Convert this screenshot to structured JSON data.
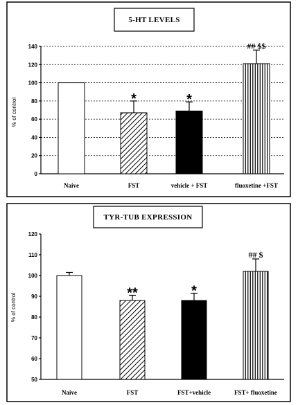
{
  "chart_data": [
    {
      "type": "bar",
      "title": "5-HT LEVELS",
      "ylabel": "% of control",
      "xlabel": "",
      "categories": [
        "Naive",
        "FST",
        "vehicle + FST",
        "fluoxetine +FST"
      ],
      "values": [
        100,
        67,
        69,
        121
      ],
      "errors": [
        0,
        13,
        10,
        15
      ],
      "fills": [
        "white",
        "diagonal-hatch",
        "black",
        "vertical-hatch"
      ],
      "annotations": [
        "",
        "*",
        "*",
        "## $$"
      ],
      "ylim": [
        0,
        140
      ],
      "yticks": [
        "0",
        "20",
        "40",
        "60",
        "80",
        "100",
        "120",
        "140"
      ],
      "grid": true
    },
    {
      "type": "bar",
      "title": "TYR-TUB EXPRESSION",
      "ylabel": "% of control",
      "xlabel": "",
      "categories": [
        "Naive",
        "FST",
        "FST+vehicle",
        "FST+ fluoxetine"
      ],
      "values": [
        100,
        88,
        88,
        102
      ],
      "errors": [
        1.5,
        2.5,
        3.5,
        6
      ],
      "fills": [
        "white",
        "diagonal-hatch",
        "black",
        "vertical-hatch"
      ],
      "annotations": [
        "",
        "**",
        "*",
        "## $"
      ],
      "ylim": [
        50,
        120
      ],
      "yticks": [
        "50",
        "60",
        "70",
        "80",
        "90",
        "100",
        "110",
        "120"
      ],
      "grid": false
    }
  ]
}
